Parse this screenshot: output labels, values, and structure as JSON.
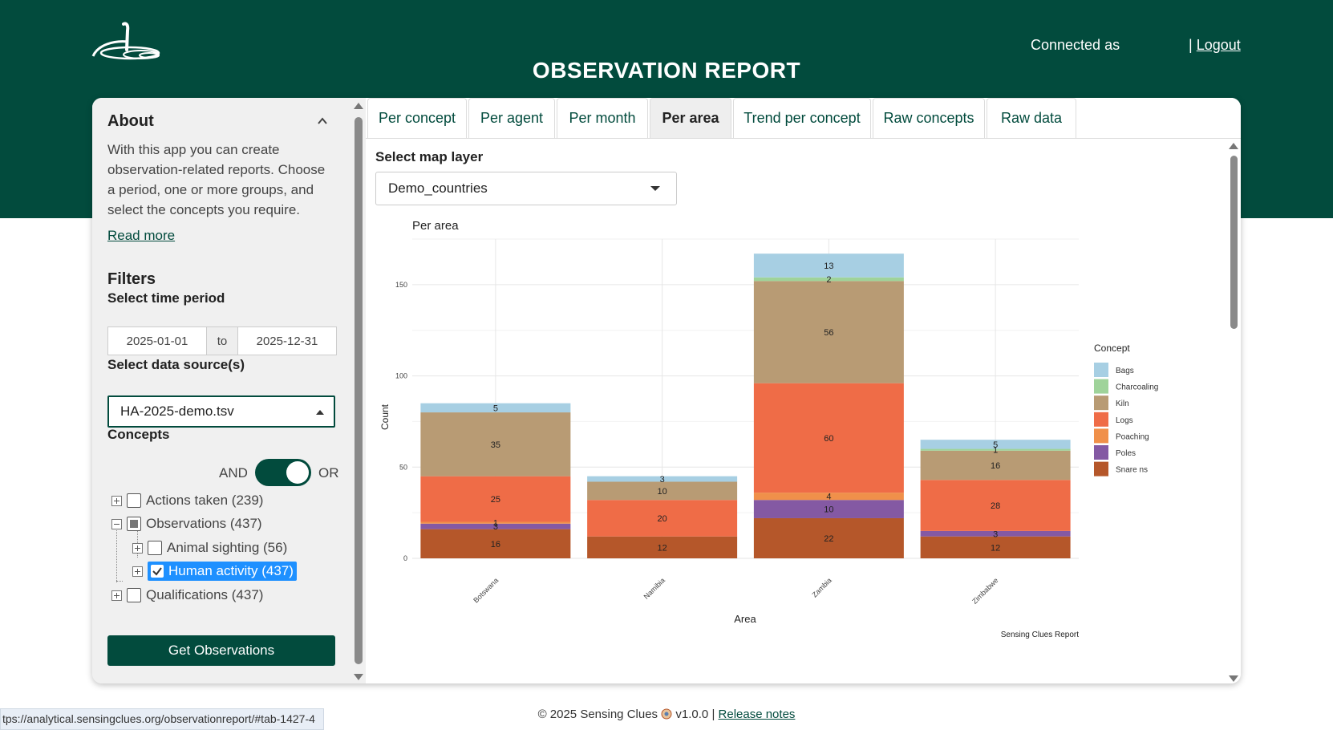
{
  "header": {
    "title": "OBSERVATION REPORT",
    "connected_as": "Connected as",
    "logout_sep": "|",
    "logout": "Logout",
    "bg_color": "#024b3d"
  },
  "sidebar": {
    "about_title": "About",
    "about_text": "With this app you can create observation-related reports. Choose a period, one or more groups, and select the concepts you require.",
    "read_more": "Read more",
    "filters_title": "Filters",
    "time_label": "Select time period",
    "date_from": "2025-01-01",
    "date_sep": "to",
    "date_to": "2025-12-31",
    "datasource_label": "Select data source(s)",
    "datasource_value": "HA-2025-demo.tsv",
    "concepts_label": "Concepts",
    "toggle_and": "AND",
    "toggle_or": "OR",
    "tree": {
      "actions": "Actions taken (239)",
      "observations": "Observations (437)",
      "animal": "Animal sighting (56)",
      "human": "Human activity (437)",
      "qualifications": "Qualifications (437)"
    },
    "get_button": "Get Observations"
  },
  "tabs": [
    "Per concept",
    "Per agent",
    "Per month",
    "Per area",
    "Trend per concept",
    "Raw concepts",
    "Raw data"
  ],
  "active_tab": "Per area",
  "map_layer": {
    "label": "Select map layer",
    "value": "Demo_countries"
  },
  "chart_data": {
    "type": "bar",
    "stacked": true,
    "title": "Per area",
    "xlabel": "Area",
    "ylabel": "Count",
    "caption": "Sensing Clues Report",
    "legend_title": "Concept",
    "ylim": [
      0,
      175
    ],
    "yticks": [
      0,
      50,
      100,
      150
    ],
    "categories": [
      "Botswana",
      "Namibia",
      "Zambia",
      "Zimbabwe"
    ],
    "series": [
      {
        "name": "Snare ns",
        "color": "#b5572a",
        "values": [
          16,
          12,
          22,
          12
        ]
      },
      {
        "name": "Poles",
        "color": "#8459a3",
        "values": [
          3,
          0,
          10,
          3
        ]
      },
      {
        "name": "Poaching",
        "color": "#f0904a",
        "values": [
          1,
          0,
          4,
          0
        ]
      },
      {
        "name": "Logs",
        "color": "#ef6c47",
        "values": [
          25,
          20,
          60,
          28
        ]
      },
      {
        "name": "Kiln",
        "color": "#b89b74",
        "values": [
          35,
          10,
          56,
          16
        ]
      },
      {
        "name": "Charcoaling",
        "color": "#9fd39a",
        "values": [
          0,
          0,
          2,
          1
        ]
      },
      {
        "name": "Bags",
        "color": "#a7cfe3",
        "values": [
          5,
          3,
          13,
          5
        ]
      }
    ],
    "labels": [
      {
        "cat": 0,
        "series": "Snare ns",
        "text": "16"
      },
      {
        "cat": 0,
        "series": "Poles",
        "text": "3"
      },
      {
        "cat": 0,
        "series": "Poaching",
        "text": "1"
      },
      {
        "cat": 0,
        "series": "Logs",
        "text": "25"
      },
      {
        "cat": 0,
        "series": "Kiln",
        "text": "35"
      },
      {
        "cat": 0,
        "series": "Bags",
        "text": "5"
      },
      {
        "cat": 1,
        "series": "Snare ns",
        "text": "12"
      },
      {
        "cat": 1,
        "series": "Logs",
        "text": "20"
      },
      {
        "cat": 1,
        "series": "Kiln",
        "text": "10"
      },
      {
        "cat": 1,
        "series": "Bags",
        "text": "3"
      },
      {
        "cat": 2,
        "series": "Snare ns",
        "text": "22"
      },
      {
        "cat": 2,
        "series": "Poles",
        "text": "10"
      },
      {
        "cat": 2,
        "series": "Poaching",
        "text": "4"
      },
      {
        "cat": 2,
        "series": "Logs",
        "text": "60"
      },
      {
        "cat": 2,
        "series": "Kiln",
        "text": "56"
      },
      {
        "cat": 2,
        "series": "Charcoaling",
        "text": "2"
      },
      {
        "cat": 2,
        "series": "Bags",
        "text": "13"
      },
      {
        "cat": 3,
        "series": "Snare ns",
        "text": "12"
      },
      {
        "cat": 3,
        "series": "Poles",
        "text": "3"
      },
      {
        "cat": 3,
        "series": "Logs",
        "text": "28"
      },
      {
        "cat": 3,
        "series": "Kiln",
        "text": "16"
      },
      {
        "cat": 3,
        "series": "Charcoaling",
        "text": "1"
      },
      {
        "cat": 3,
        "series": "Bags",
        "text": "5"
      }
    ]
  },
  "footer": {
    "text": "© 2025 Sensing Clues",
    "version": "v1.0.0",
    "sep": "|",
    "release_notes": "Release notes"
  },
  "status_url": "tps://analytical.sensingclues.org/observationreport/#tab-1427-4"
}
